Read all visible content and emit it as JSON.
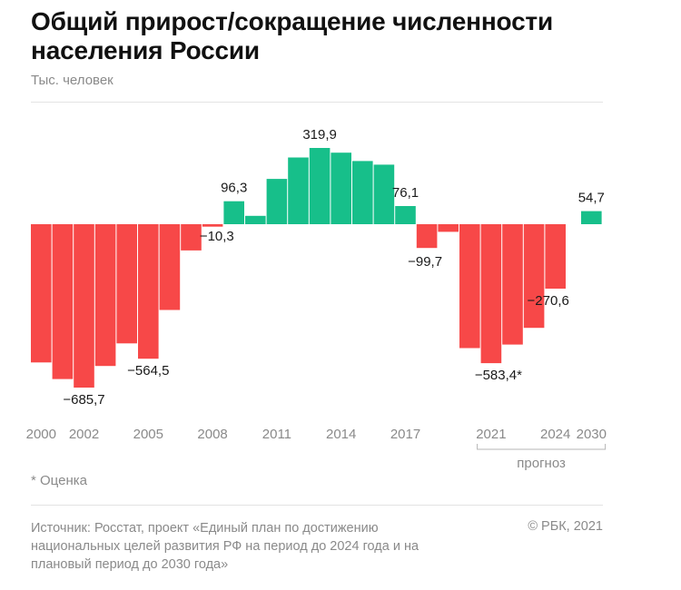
{
  "header": {
    "title": "Общий прирост/сокращение численности населения России",
    "units": "Тыс. человек"
  },
  "footer": {
    "note": "* Оценка",
    "source": "Источник: Росстат, проект «Единый план по достижению национальных целей развития РФ на период до 2024 года и на плановый период до 2030 года»",
    "copyright": "© РБК, 2021"
  },
  "colors": {
    "positive": "#17bf8a",
    "negative": "#f74848",
    "text": "#1a1a1a",
    "muted": "#8a8a8a"
  },
  "chart_data": {
    "type": "bar",
    "title": "Общий прирост/сокращение численности населения России",
    "ylabel": "Тыс. человек",
    "categories": [
      "2000",
      "2001",
      "2002",
      "2003",
      "2004",
      "2005",
      "2006",
      "2007",
      "2008",
      "2009",
      "2010",
      "2011",
      "2012",
      "2013",
      "2014",
      "2015",
      "2016",
      "2017",
      "2018",
      "2019",
      "2020",
      "2021",
      "2022",
      "2023",
      "2024",
      "2030"
    ],
    "values": [
      -580,
      -650,
      -685.7,
      -595,
      -500,
      -564.5,
      -360,
      -110,
      -10.3,
      96.3,
      35,
      190,
      280,
      319.9,
      300,
      265,
      250,
      76.1,
      -99.7,
      -32,
      -520,
      -583.4,
      -505,
      -435,
      -270.6,
      54.7
    ],
    "x_tick_labels": [
      "2000",
      "2002",
      "2005",
      "2008",
      "2011",
      "2014",
      "2017",
      "2021",
      "2024",
      "2030"
    ],
    "forecast_label": "прогноз",
    "value_labels": [
      {
        "year": "2002",
        "text": "−685,7"
      },
      {
        "year": "2005",
        "text": "−564,5"
      },
      {
        "year": "2008",
        "text": "−10,3"
      },
      {
        "year": "2009",
        "text": "96,3"
      },
      {
        "year": "2013",
        "text": "319,9"
      },
      {
        "year": "2017",
        "text": "76,1"
      },
      {
        "year": "2018",
        "text": "−99,7"
      },
      {
        "year": "2021",
        "text": "−583,4*"
      },
      {
        "year": "2024",
        "text": "−270,6"
      },
      {
        "year": "2030",
        "text": "54,7"
      }
    ],
    "ylim": [
      -700,
      350
    ],
    "grid": false,
    "legend": "none"
  }
}
